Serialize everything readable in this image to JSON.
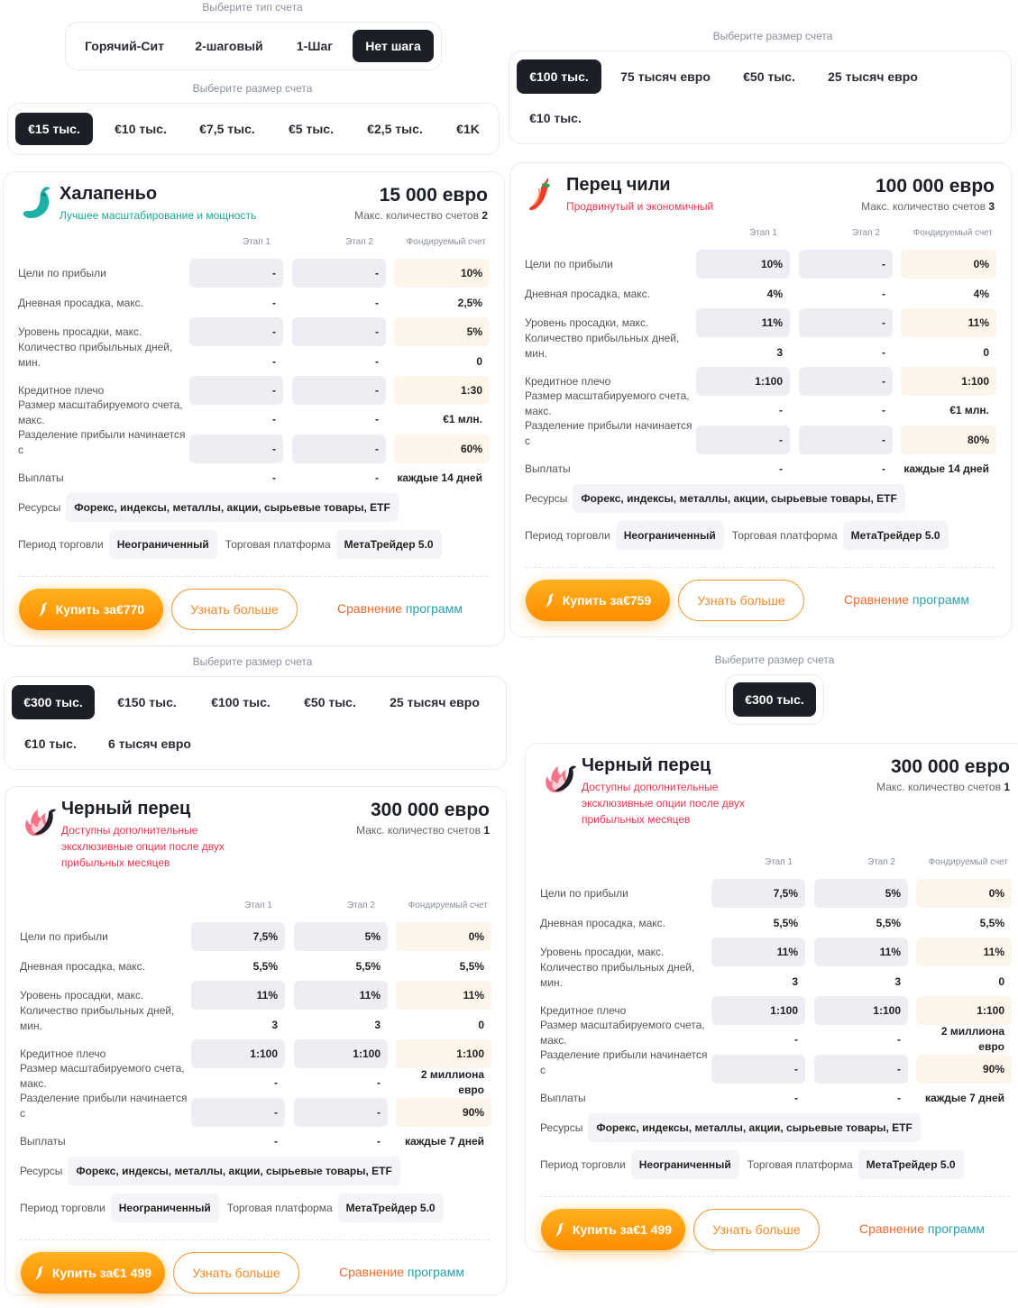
{
  "colors": {
    "accent": "#ff9a0e",
    "active": "#1c1f26",
    "teal": "#18a894",
    "red": "#e8344e",
    "cmp1": "#ee6a2e",
    "cmp2": "#2b9fae"
  },
  "type_selector": {
    "caption": "Выберите тип счета",
    "options": [
      "Горячий-Сит",
      "2-шаговый",
      "1-Шаг",
      "Нет шага"
    ],
    "selected": "Нет шага"
  },
  "size_a": {
    "caption": "Выберите размер счета",
    "options": [
      "€15 тыс.",
      "€10 тыс.",
      "€7,5 тыс.",
      "€5 тыс.",
      "€2,5 тыс.",
      "€1K"
    ],
    "selected": "€15 тыс."
  },
  "size_b": {
    "caption": "Выберите размер счета",
    "options": [
      "€100 тыс.",
      "75 тысяч евро",
      "€50 тыс.",
      "25 тысяч евро",
      "€10 тыс."
    ],
    "selected": "€100 тыс."
  },
  "size_c": {
    "caption": "Выберите размер счета",
    "options": [
      "€300 тыс.",
      "€150 тыс.",
      "€100 тыс.",
      "€50 тыс.",
      "25 тысяч евро",
      "€10 тыс.",
      "6 тысяч евро"
    ],
    "selected": "€300 тыс."
  },
  "size_d": {
    "caption": "Выберите размер счета",
    "options": [
      "€300 тыс."
    ],
    "selected": "€300 тыс."
  },
  "labels": {
    "col_stage1": "Этап 1",
    "col_stage2": "Этап 2",
    "col_funded": "Фондируемый счет",
    "rows": [
      "Цели по прибыли",
      "Дневная просадка, макс.",
      "Уровень просадки, макс.",
      "Количество прибыльных дней, мин.",
      "Кредитное плечо",
      "Размер масштабируемого счета, макс.",
      "Разделение прибыли начинается с",
      "Выплаты"
    ],
    "max_accounts": "Макс. количество счетов",
    "resources": "Ресурсы",
    "resources_value": "Форекс, индексы, металлы, акции, сырьевые товары, ETF",
    "period": "Период торговли",
    "period_value": "Неограниченный",
    "platform": "Торговая платформа",
    "platform_value": "МетаТрейдер 5.0",
    "learn_more": "Узнать больше",
    "compare_1": "Сравнение",
    "compare_2": "программ"
  },
  "cards": [
    {
      "title": "Халапеньо",
      "subtitle": "Лучшее масштабирование и мощность",
      "price": "15 000 евро",
      "max_accounts": "2",
      "buy": "Купить за€770",
      "values": [
        [
          "-",
          "-",
          "10%"
        ],
        [
          "-",
          "-",
          "2,5%"
        ],
        [
          "-",
          "-",
          "5%"
        ],
        [
          "-",
          "-",
          "0"
        ],
        [
          "-",
          "-",
          "1:30"
        ],
        [
          "-",
          "-",
          "€1 млн."
        ],
        [
          "-",
          "-",
          "60%"
        ],
        [
          "-",
          "-",
          "каждые 14 дней"
        ]
      ]
    },
    {
      "title": "Перец чили",
      "subtitle": "Продвинутый и экономичный",
      "price": "100 000 евро",
      "max_accounts": "3",
      "buy": "Купить за€759",
      "values": [
        [
          "10%",
          "-",
          "0%"
        ],
        [
          "4%",
          "-",
          "4%"
        ],
        [
          "11%",
          "-",
          "11%"
        ],
        [
          "3",
          "-",
          "0"
        ],
        [
          "1:100",
          "-",
          "1:100"
        ],
        [
          "-",
          "-",
          "€1 млн."
        ],
        [
          "-",
          "-",
          "80%"
        ],
        [
          "-",
          "-",
          "каждые 14 дней"
        ]
      ]
    },
    {
      "title": "Черный перец",
      "subtitle": "Доступны дополнительные эксклюзивные опции после двух прибыльных месяцев",
      "price": "300 000 евро",
      "max_accounts": "1",
      "buy": "Купить за€1 499",
      "values": [
        [
          "7,5%",
          "5%",
          "0%"
        ],
        [
          "5,5%",
          "5,5%",
          "5,5%"
        ],
        [
          "11%",
          "11%",
          "11%"
        ],
        [
          "3",
          "3",
          "0"
        ],
        [
          "1:100",
          "1:100",
          "1:100"
        ],
        [
          "-",
          "-",
          "2 миллиона евро"
        ],
        [
          "-",
          "-",
          "90%"
        ],
        [
          "-",
          "-",
          "каждые 7 дней"
        ]
      ]
    },
    {
      "title": "Черный перец",
      "subtitle": "Доступны дополнительные эксклюзивные опции после двух прибыльных месяцев",
      "price": "300 000 евро",
      "max_accounts": "1",
      "buy": "Купить за€1 499",
      "values": [
        [
          "7,5%",
          "5%",
          "0%"
        ],
        [
          "5,5%",
          "5,5%",
          "5,5%"
        ],
        [
          "11%",
          "11%",
          "11%"
        ],
        [
          "3",
          "3",
          "0"
        ],
        [
          "1:100",
          "1:100",
          "1:100"
        ],
        [
          "-",
          "-",
          "2 миллиона евро"
        ],
        [
          "-",
          "-",
          "90%"
        ],
        [
          "-",
          "-",
          "каждые 7 дней"
        ]
      ]
    }
  ],
  "icons": {
    "jalapeno": "jalapeno-pepper-icon",
    "chili": "chili-pepper-icon",
    "black": "black-pepper-icon",
    "buy": "pepper-icon"
  }
}
